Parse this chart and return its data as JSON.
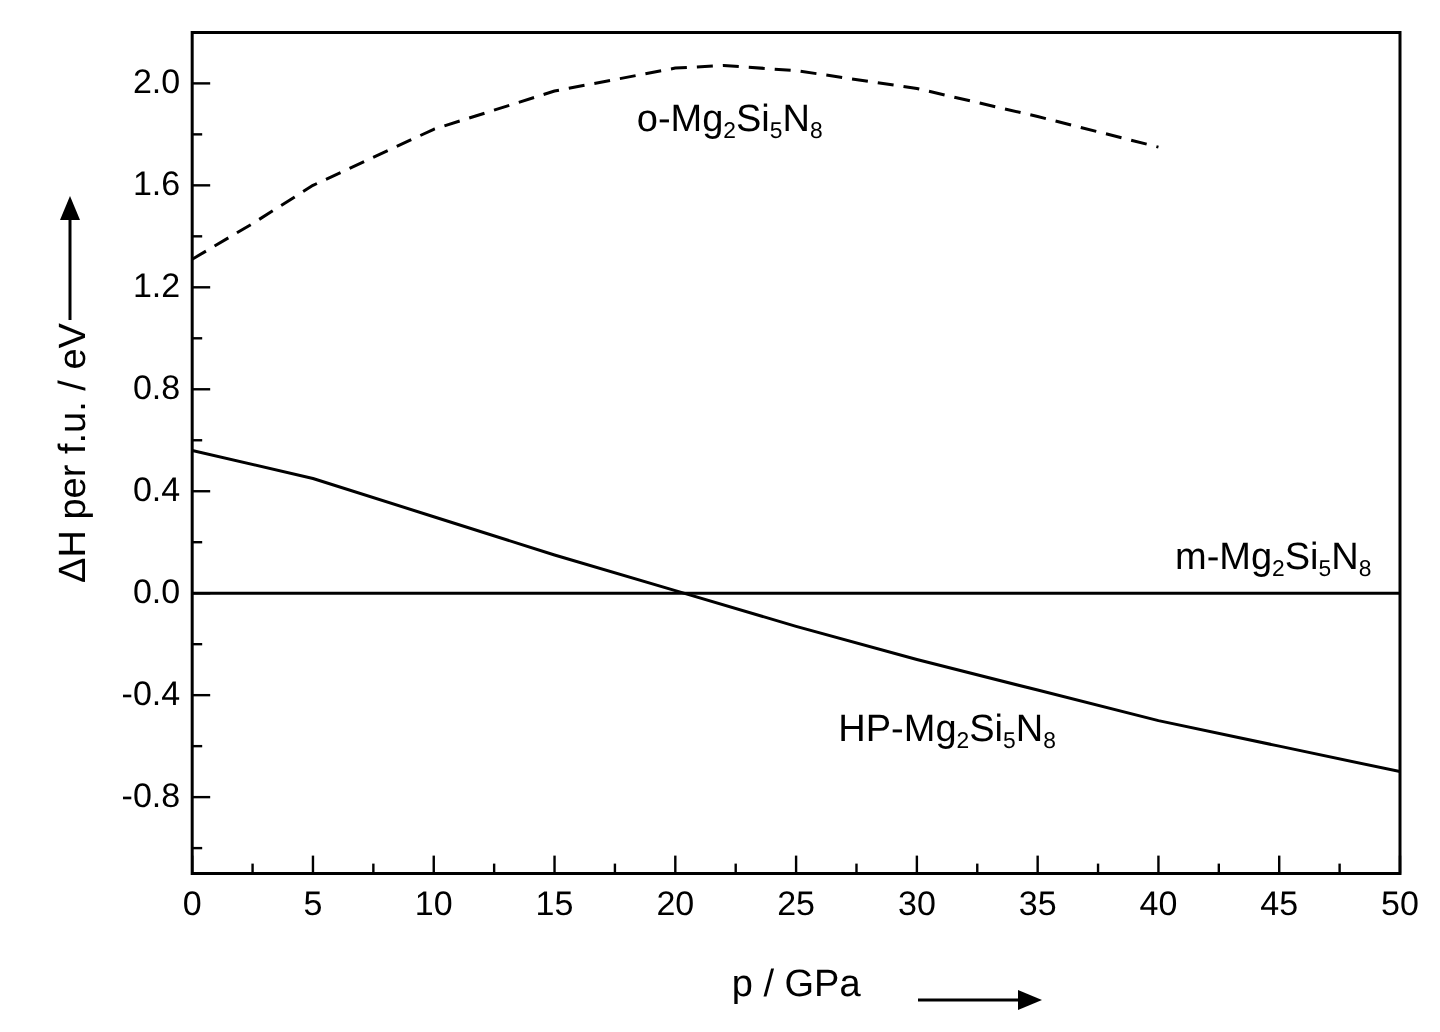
{
  "chart_data": {
    "type": "line",
    "xlabel": "p / GPa",
    "ylabel": "ΔH per f.u. / eV",
    "xlim": [
      0,
      50
    ],
    "ylim": [
      -1.1,
      2.2
    ],
    "xticks": [
      0,
      {
        "value": 2.5,
        "label": null
      },
      5,
      {
        "value": 7.5,
        "label": null
      },
      10,
      {
        "value": 12.5,
        "label": null
      },
      15,
      {
        "value": 17.5,
        "label": null
      },
      20,
      {
        "value": 22.5,
        "label": null
      },
      25,
      {
        "value": 27.5,
        "label": null
      },
      30,
      {
        "value": 32.5,
        "label": null
      },
      35,
      {
        "value": 37.5,
        "label": null
      },
      40,
      {
        "value": 42.5,
        "label": null
      },
      45,
      {
        "value": 47.5,
        "label": null
      },
      50
    ],
    "yticks": [
      {
        "value": -1.0,
        "label": null
      },
      {
        "value": -0.8,
        "label": "-0.8"
      },
      {
        "value": -0.6,
        "label": null
      },
      {
        "value": -0.4,
        "label": "-0.4"
      },
      {
        "value": -0.2,
        "label": null
      },
      {
        "value": 0,
        "label": "0.0"
      },
      {
        "value": 0.2,
        "label": null
      },
      {
        "value": 0.4,
        "label": "0.4"
      },
      {
        "value": 0.6,
        "label": null
      },
      {
        "value": 0.8,
        "label": "0.8"
      },
      {
        "value": 1.0,
        "label": null
      },
      {
        "value": 1.2,
        "label": "1.2"
      },
      {
        "value": 1.4,
        "label": null
      },
      {
        "value": 1.6,
        "label": "1.6"
      },
      {
        "value": 1.8,
        "label": null
      },
      {
        "value": 2.0,
        "label": "2.0"
      }
    ],
    "grid": false,
    "marker": "none",
    "series": [
      {
        "name": "o-Mg$_{2}$Si$_{5}$N$_{8}$",
        "color": "#000000",
        "line_style": "dashed",
        "x": [
          0,
          2.5,
          5,
          10,
          15,
          20,
          22,
          25,
          30,
          35,
          40
        ],
        "values": [
          1.31,
          1.45,
          1.6,
          1.82,
          1.97,
          2.06,
          2.07,
          2.05,
          1.98,
          1.87,
          1.75
        ]
      },
      {
        "name": "m-Mg$_{2}$Si$_{5}$N$_{8}$",
        "color": "#000000",
        "line_style": "solid",
        "x": [
          0,
          50
        ],
        "values": [
          0,
          0
        ]
      },
      {
        "name": "HP-Mg$_{2}$Si$_{5}$N$_{8}$",
        "color": "#000000",
        "line_style": "solid",
        "x": [
          0,
          5,
          10,
          15,
          20,
          25,
          30,
          35,
          40,
          45,
          50
        ],
        "values": [
          0.56,
          0.45,
          0.3,
          0.15,
          0.01,
          -0.13,
          -0.26,
          -0.38,
          -0.5,
          -0.6,
          -0.7
        ]
      }
    ]
  }
}
